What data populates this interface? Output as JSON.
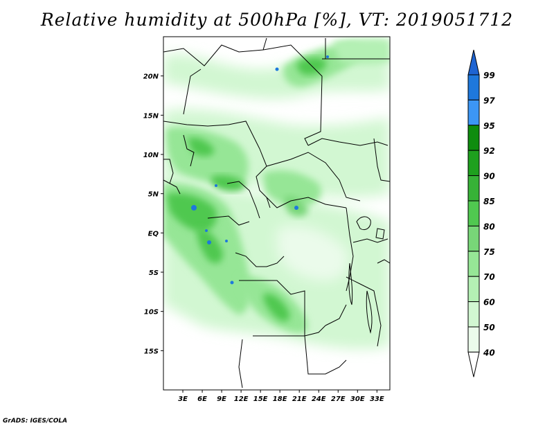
{
  "title": "Relative humidity at 500hPa [%], VT: 2019051712",
  "credit": "GrADS: IGES/COLA",
  "map": {
    "variable": "Relative humidity",
    "level": "500hPa",
    "units": "%",
    "valid_time": "2019051712",
    "lon_range_deg": [
      0,
      35
    ],
    "lat_range_deg": [
      -20,
      25
    ],
    "lat_ticks": [
      {
        "label": "20N",
        "value": 20
      },
      {
        "label": "15N",
        "value": 15
      },
      {
        "label": "10N",
        "value": 10
      },
      {
        "label": "5N",
        "value": 5
      },
      {
        "label": "EQ",
        "value": 0
      },
      {
        "label": "5S",
        "value": -5
      },
      {
        "label": "10S",
        "value": -10
      },
      {
        "label": "15S",
        "value": -15
      }
    ],
    "lon_ticks": [
      {
        "label": "3E",
        "value": 3
      },
      {
        "label": "6E",
        "value": 6
      },
      {
        "label": "9E",
        "value": 9
      },
      {
        "label": "12E",
        "value": 12
      },
      {
        "label": "15E",
        "value": 15
      },
      {
        "label": "18E",
        "value": 18
      },
      {
        "label": "21E",
        "value": 21
      },
      {
        "label": "24E",
        "value": 24
      },
      {
        "label": "27E",
        "value": 27
      },
      {
        "label": "30E",
        "value": 30
      },
      {
        "label": "33E",
        "value": 33
      }
    ]
  },
  "colorbar": {
    "levels": [
      "99",
      "97",
      "95",
      "92",
      "90",
      "85",
      "80",
      "75",
      "70",
      "60",
      "50",
      "40"
    ],
    "colors": [
      "#1e64d2",
      "#1e78dc",
      "#3c96f5",
      "#0e8c0e",
      "#1ea01e",
      "#37b237",
      "#50c850",
      "#78d678",
      "#96e696",
      "#b4f0b4",
      "#d2f7d2",
      "#ebfbeb"
    ]
  }
}
